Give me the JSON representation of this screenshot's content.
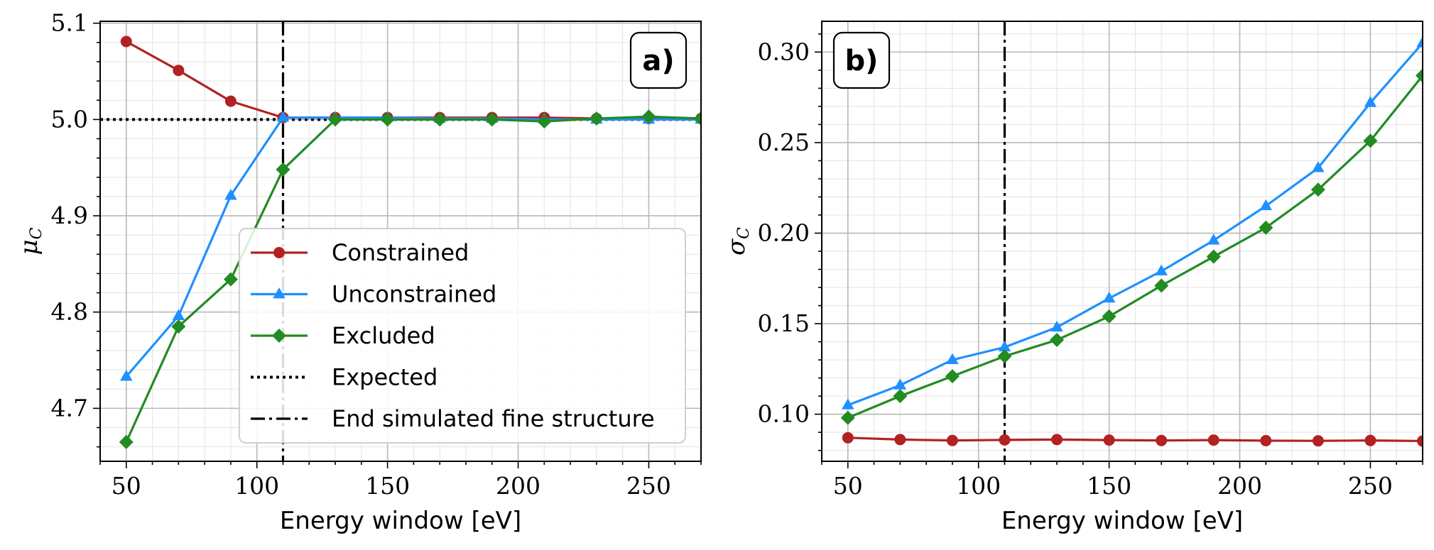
{
  "colors": {
    "constrained": "#b22222",
    "unconstrained": "#1e90ff",
    "excluded": "#228b22",
    "reference": "#000000"
  },
  "chart_data": [
    {
      "type": "line",
      "panel_label": "a)",
      "xlabel": "Energy window [eV]",
      "ylabel": "μ",
      "ylabel_sub": "C",
      "xlim": [
        40,
        270
      ],
      "ylim": [
        4.645,
        5.102
      ],
      "x_ticks": [
        50,
        100,
        150,
        200,
        250
      ],
      "y_ticks": [
        4.7,
        4.8,
        4.9,
        5.0,
        5.1
      ],
      "y_tick_labels": [
        "4.7",
        "4.8",
        "4.9",
        "5.0",
        "5.1"
      ],
      "grid": true,
      "x": [
        50,
        70,
        90,
        110,
        130,
        150,
        170,
        190,
        210,
        230,
        250,
        270
      ],
      "series": [
        {
          "name": "Constrained",
          "marker": "circle",
          "color_key": "constrained",
          "values": [
            5.081,
            5.051,
            5.019,
            5.002,
            5.002,
            5.002,
            5.002,
            5.002,
            5.002,
            5.001,
            5.001,
            5.001
          ]
        },
        {
          "name": "Unconstrained",
          "marker": "triangle",
          "color_key": "unconstrained",
          "values": [
            4.733,
            4.796,
            4.921,
            5.002,
            5.002,
            5.002,
            5.001,
            5.001,
            5.0,
            5.0,
            5.0,
            5.0
          ]
        },
        {
          "name": "Excluded",
          "marker": "diamond",
          "color_key": "excluded",
          "values": [
            4.665,
            4.785,
            4.834,
            4.948,
            5.0,
            5.0,
            5.0,
            5.0,
            4.998,
            5.001,
            5.003,
            5.001
          ]
        }
      ],
      "expected_value": 5.0,
      "vline_x": 110,
      "legend": {
        "position": "lower-right",
        "entries": [
          "Constrained",
          "Unconstrained",
          "Excluded",
          "Expected",
          "End simulated fine structure"
        ]
      }
    },
    {
      "type": "line",
      "panel_label": "b)",
      "xlabel": "Energy window [eV]",
      "ylabel": "σ",
      "ylabel_sub": "C",
      "xlim": [
        40,
        270
      ],
      "ylim": [
        0.074,
        0.317
      ],
      "x_ticks": [
        50,
        100,
        150,
        200,
        250
      ],
      "y_ticks": [
        0.1,
        0.15,
        0.2,
        0.25,
        0.3
      ],
      "y_tick_labels": [
        "0.10",
        "0.15",
        "0.20",
        "0.25",
        "0.30"
      ],
      "grid": true,
      "x": [
        50,
        70,
        90,
        110,
        130,
        150,
        170,
        190,
        210,
        230,
        250,
        270
      ],
      "series": [
        {
          "name": "Constrained",
          "marker": "circle",
          "color_key": "constrained",
          "values": [
            0.087,
            0.086,
            0.0855,
            0.0858,
            0.086,
            0.0857,
            0.0855,
            0.0857,
            0.0854,
            0.0853,
            0.0855,
            0.0852
          ]
        },
        {
          "name": "Unconstrained",
          "marker": "triangle",
          "color_key": "unconstrained",
          "values": [
            0.105,
            0.116,
            0.13,
            0.137,
            0.148,
            0.164,
            0.179,
            0.196,
            0.215,
            0.236,
            0.272,
            0.305
          ]
        },
        {
          "name": "Excluded",
          "marker": "diamond",
          "color_key": "excluded",
          "values": [
            0.098,
            0.11,
            0.121,
            0.132,
            0.141,
            0.154,
            0.171,
            0.187,
            0.203,
            0.224,
            0.251,
            0.287
          ]
        }
      ],
      "vline_x": 110
    }
  ]
}
